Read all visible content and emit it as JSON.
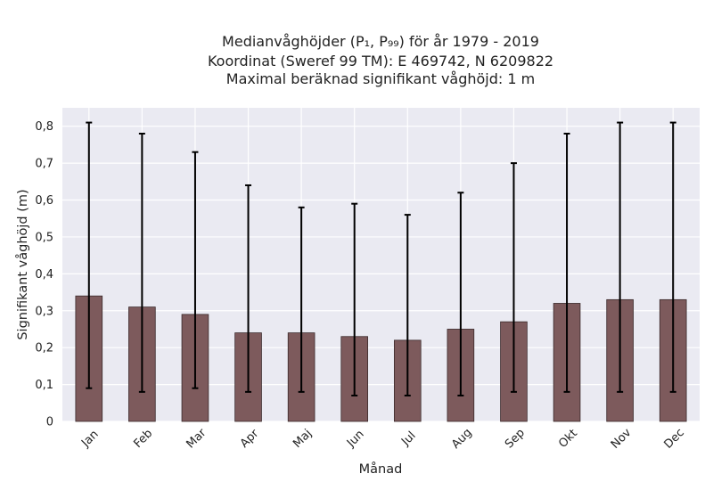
{
  "chart_data": {
    "type": "bar",
    "title_lines": [
      "Medianvåghöjder (P₁, P₉₉) för år 1979 - 2019",
      "Koordinat (Sweref 99 TM): E 469742, N 6209822",
      "Maximal beräknad signifikant våghöjd: 1 m"
    ],
    "xlabel": "Månad",
    "ylabel": "Signifikant våghöjd (m)",
    "categories": [
      "Jan",
      "Feb",
      "Mar",
      "Apr",
      "Maj",
      "Jun",
      "Jul",
      "Aug",
      "Sep",
      "Okt",
      "Nov",
      "Dec"
    ],
    "values": [
      0.34,
      0.31,
      0.29,
      0.24,
      0.24,
      0.23,
      0.22,
      0.25,
      0.27,
      0.32,
      0.33,
      0.33
    ],
    "error_low": [
      0.09,
      0.08,
      0.09,
      0.08,
      0.08,
      0.07,
      0.07,
      0.07,
      0.08,
      0.08,
      0.08,
      0.08
    ],
    "error_high": [
      0.81,
      0.78,
      0.73,
      0.64,
      0.58,
      0.59,
      0.56,
      0.62,
      0.7,
      0.78,
      0.81,
      0.81
    ],
    "ylim": [
      0,
      0.85
    ],
    "yticks": [
      0,
      0.1,
      0.2,
      0.3,
      0.4,
      0.5,
      0.6,
      0.7,
      0.8
    ],
    "ytick_labels": [
      "0",
      "0,1",
      "0,2",
      "0,3",
      "0,4",
      "0,5",
      "0,6",
      "0,7",
      "0,8"
    ],
    "grid": true,
    "colors": {
      "bar": "#7d5a5c",
      "bar_edge": "#3a2a2b",
      "error_bar": "#000000",
      "plot_background": "#eaeaf2",
      "grid": "#ffffff"
    }
  }
}
